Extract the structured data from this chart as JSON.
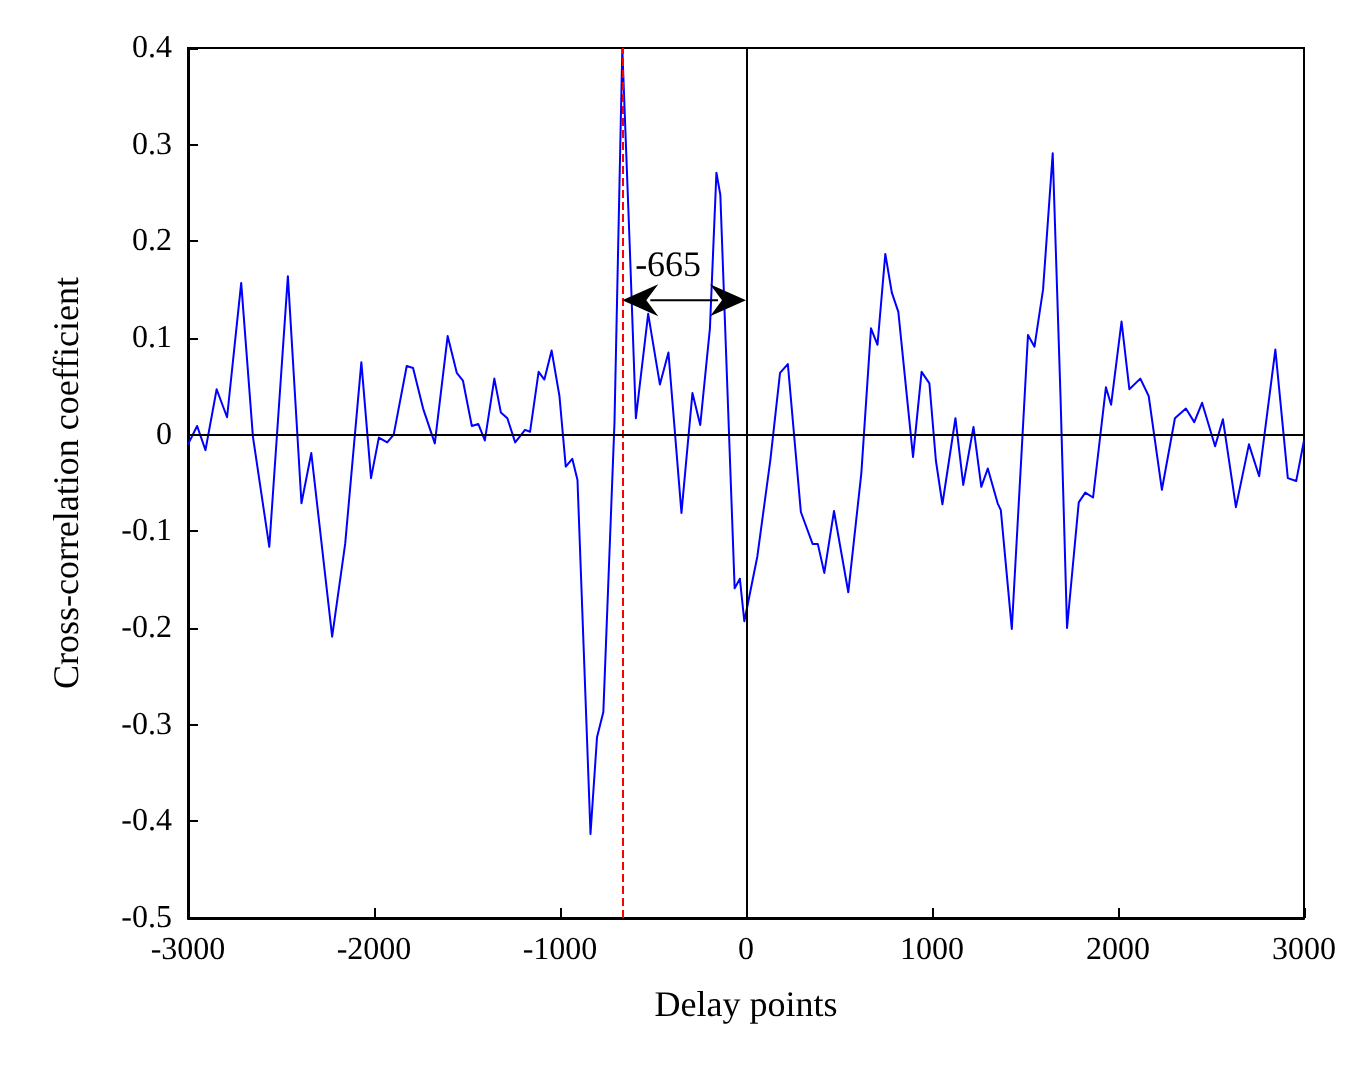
{
  "chart_data": {
    "type": "line",
    "xlabel": "Delay points",
    "ylabel": "Cross-correlation coefficient",
    "x": [
      -3000,
      -2951,
      -2906,
      -2846,
      -2790,
      -2714,
      -2651,
      -2563,
      -2463,
      -2390,
      -2337,
      -2225,
      -2155,
      -2068,
      -2016,
      -1974,
      -1929,
      -1894,
      -1824,
      -1790,
      -1736,
      -1673,
      -1604,
      -1555,
      -1522,
      -1474,
      -1439,
      -1404,
      -1353,
      -1318,
      -1283,
      -1241,
      -1188,
      -1161,
      -1115,
      -1084,
      -1045,
      -1003,
      -969,
      -934,
      -906,
      -836,
      -801,
      -767,
      -707,
      -665,
      -626,
      -592,
      -526,
      -463,
      -417,
      -347,
      -288,
      -246,
      -194,
      -159,
      -138,
      -61,
      -33,
      -9,
      61,
      131,
      183,
      225,
      295,
      358,
      386,
      421,
      473,
      550,
      620,
      672,
      707,
      749,
      784,
      819,
      898,
      944,
      986,
      1021,
      1056,
      1126,
      1168,
      1223,
      1265,
      1300,
      1353,
      1370,
      1429,
      1482,
      1516,
      1551,
      1597,
      1649,
      1691,
      1726,
      1789,
      1824,
      1866,
      1935,
      1963,
      2019,
      2061,
      2120,
      2165,
      2236,
      2306,
      2365,
      2410,
      2452,
      2522,
      2564,
      2634,
      2704,
      2759,
      2846,
      2913,
      2958,
      3000
    ],
    "series": [
      {
        "color": "#0000ff",
        "values": [
          -0.01,
          0.009,
          -0.016,
          0.047,
          0.018,
          0.157,
          -0.002,
          -0.116,
          0.164,
          -0.071,
          -0.019,
          -0.209,
          -0.113,
          0.075,
          -0.045,
          -0.003,
          -0.008,
          0.0,
          0.071,
          0.069,
          0.027,
          -0.009,
          0.102,
          0.064,
          0.056,
          0.009,
          0.011,
          -0.006,
          0.058,
          0.023,
          0.017,
          -0.008,
          0.005,
          0.003,
          0.065,
          0.057,
          0.087,
          0.04,
          -0.033,
          -0.025,
          -0.047,
          -0.413,
          -0.313,
          -0.287,
          0.013,
          0.399,
          0.2,
          0.017,
          0.125,
          0.052,
          0.085,
          -0.081,
          0.043,
          0.01,
          0.11,
          0.271,
          0.248,
          -0.159,
          -0.149,
          -0.193,
          -0.126,
          -0.026,
          0.064,
          0.073,
          -0.08,
          -0.113,
          -0.113,
          -0.143,
          -0.079,
          -0.163,
          -0.04,
          0.11,
          0.093,
          0.187,
          0.147,
          0.127,
          -0.023,
          0.065,
          0.053,
          -0.027,
          -0.072,
          0.017,
          -0.052,
          0.008,
          -0.054,
          -0.035,
          -0.071,
          -0.078,
          -0.201,
          -0.017,
          0.103,
          0.091,
          0.15,
          0.291,
          0.039,
          -0.2,
          -0.07,
          -0.06,
          -0.065,
          0.049,
          0.031,
          0.117,
          0.047,
          0.058,
          0.04,
          -0.057,
          0.017,
          0.027,
          0.013,
          0.033,
          -0.012,
          0.016,
          -0.075,
          -0.01,
          -0.043,
          0.088,
          -0.045,
          -0.048,
          -0.006
        ]
      }
    ],
    "xlim": [
      -3000,
      3000
    ],
    "xticks": [
      -3000,
      -2000,
      -1000,
      0,
      1000,
      2000,
      3000
    ],
    "ylim": [
      -0.5,
      0.4
    ],
    "yticks": [
      -0.5,
      -0.4,
      -0.3,
      -0.2,
      -0.1,
      0,
      0.1,
      0.2,
      0.3,
      0.4
    ],
    "ref_lines": [
      {
        "axis": "x",
        "value": -665,
        "color": "#ff0000",
        "line_style": "dashed"
      },
      {
        "axis": "x",
        "value": 0,
        "color": "#000000",
        "line_style": "solid"
      },
      {
        "axis": "y",
        "value": 0,
        "color": "#000000",
        "line_style": "solid"
      }
    ],
    "annotations": [
      "-665"
    ],
    "grid": false,
    "marker": "none",
    "line_style": "solid"
  }
}
